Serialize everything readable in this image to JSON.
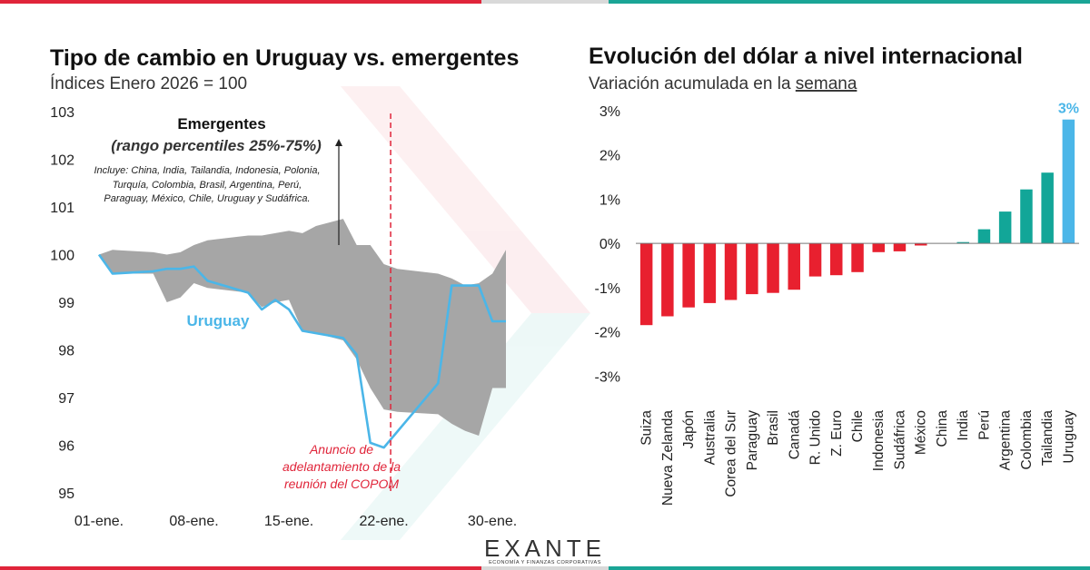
{
  "colors": {
    "red": "#e8202f",
    "teal": "#12a698",
    "blue": "#4bb6e8",
    "band": "#a6a6a6",
    "top_left": "#e0253a",
    "top_mid": "#d9d9d9",
    "top_right": "#1aa596"
  },
  "chart_data": [
    {
      "type": "area",
      "title": "Tipo de cambio en Uruguay vs. emergentes",
      "subtitle": "Índices Enero 2026 = 100",
      "ylim": [
        95,
        103
      ],
      "yticks": [
        "95",
        "96",
        "97",
        "98",
        "99",
        "100",
        "101",
        "102",
        "103"
      ],
      "xlim": [
        1,
        31
      ],
      "xticks": [
        {
          "day": 1,
          "label": "01-ene."
        },
        {
          "day": 8,
          "label": "08-ene."
        },
        {
          "day": 15,
          "label": "15-ene."
        },
        {
          "day": 22,
          "label": "22-ene."
        },
        {
          "day": 30,
          "label": "30-ene."
        }
      ],
      "band_legend_title": "Emergentes",
      "band_legend_subtitle": "(rango percentiles 25%-75%)",
      "band_note": [
        "Incluye: China, India, Tailandia, Indonesia, Polonia,",
        "Turquía, Colombia, Brasil, Argentina, Perú,",
        "Paraguay, México, Chile, Uruguay y Sudáfrica."
      ],
      "series": [
        {
          "name": "Emergentes",
          "kind": "band",
          "x": [
            1,
            2,
            5,
            6,
            7,
            8,
            9,
            12,
            13,
            14,
            15,
            16,
            17,
            19,
            20,
            21,
            22,
            23,
            26,
            27,
            28,
            29,
            30,
            31
          ],
          "upper": [
            100,
            100.1,
            100.05,
            100,
            100.05,
            100.2,
            100.3,
            100.4,
            100.4,
            100.45,
            100.5,
            100.45,
            100.6,
            100.75,
            100.2,
            100.2,
            99.8,
            99.7,
            99.6,
            99.5,
            99.35,
            99.4,
            99.6,
            100.1
          ],
          "lower": [
            100,
            99.6,
            99.6,
            99.0,
            99.1,
            99.4,
            99.3,
            99.2,
            98.9,
            99.0,
            99.05,
            98.4,
            98.35,
            98.2,
            97.8,
            97.2,
            96.75,
            96.7,
            96.65,
            96.45,
            96.3,
            96.2,
            97.2,
            97.2
          ]
        },
        {
          "name": "Uruguay",
          "kind": "line",
          "x": [
            1,
            2,
            5,
            6,
            7,
            8,
            9,
            12,
            13,
            14,
            15,
            16,
            17,
            19,
            20,
            21,
            22,
            26,
            27,
            28,
            29,
            30,
            31
          ],
          "values": [
            100,
            99.6,
            99.65,
            99.7,
            99.7,
            99.75,
            99.45,
            99.2,
            98.85,
            99.05,
            98.85,
            98.4,
            98.35,
            98.25,
            97.9,
            96.05,
            95.95,
            97.3,
            99.35,
            99.35,
            99.35,
            98.6,
            98.6
          ]
        }
      ],
      "vline": {
        "day": 22.5,
        "label_lines": [
          "Anuncio de",
          "adelantamiento de la",
          "reunión del COPOM"
        ]
      }
    },
    {
      "type": "bar",
      "title": "Evolución del dólar a nivel internacional",
      "subtitle_prefix": "Variación acumulada en la ",
      "subtitle_underlined": "semana",
      "ylim": [
        -4.0,
        3.0
      ],
      "yticks": [
        "-3%",
        "-2%",
        "-1%",
        "0%",
        "1%",
        "2%",
        "3%"
      ],
      "categories": [
        "Suiza",
        "Nueva Zelanda",
        "Japón",
        "Australia",
        "Corea del Sur",
        "Paraguay",
        "Brasil",
        "Canadá",
        "R. Unido",
        "Z. Euro",
        "Chile",
        "Indonesia",
        "Sudáfrica",
        "México",
        "China",
        "India",
        "Perú",
        "Argentina",
        "Colombia",
        "Tailandia",
        "Uruguay"
      ],
      "values": [
        -1.85,
        -1.65,
        -1.45,
        -1.35,
        -1.28,
        -1.15,
        -1.12,
        -1.05,
        -0.75,
        -0.72,
        -0.65,
        -0.2,
        -0.18,
        -0.05,
        0.0,
        0.03,
        0.32,
        0.72,
        1.22,
        1.6,
        2.8
      ],
      "highlight_label": "3%"
    }
  ],
  "brand": {
    "logo": "EXANTE",
    "tagline": "ECONOMÍA Y FINANZAS CORPORATIVAS"
  }
}
